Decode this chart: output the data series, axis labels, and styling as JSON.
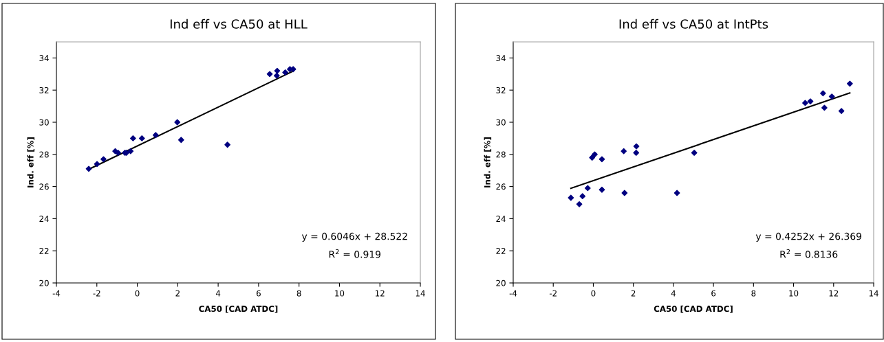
{
  "chart_data": [
    {
      "type": "scatter",
      "title": "Ind eff vs CA50 at HLL",
      "xlabel": "CA50 [CAD ATDC]",
      "ylabel": "Ind. eff [%]",
      "xlim": [
        -4,
        14
      ],
      "xticks": [
        -4,
        -2,
        0,
        2,
        4,
        6,
        8,
        10,
        12,
        14
      ],
      "ylim": [
        20,
        35
      ],
      "yticks": [
        20,
        22,
        24,
        26,
        28,
        30,
        32,
        34
      ],
      "grid": false,
      "annotations": [
        "y = 0.6046x + 28.522",
        "R$^{2}$ = 0.919"
      ],
      "series": [
        {
          "marker": "diamond",
          "color": "#000080",
          "x": [
            -2.4,
            -1.99,
            -1.67,
            -1.09,
            -0.95,
            -0.61,
            -0.54,
            -0.33,
            -0.21,
            0.23,
            0.91,
            1.98,
            2.17,
            4.46,
            6.55,
            6.92,
            6.9,
            7.32,
            7.55,
            7.71
          ],
          "values": [
            27.1,
            27.4,
            27.7,
            28.2,
            28.1,
            28.1,
            28.1,
            28.2,
            29.0,
            29.0,
            29.2,
            30.0,
            28.9,
            28.6,
            33.0,
            33.2,
            32.9,
            33.1,
            33.3,
            33.3
          ]
        },
        {
          "type": "line",
          "marker": "none",
          "line_style": "solid",
          "color": "#000000",
          "x": [
            -2.4,
            7.71
          ],
          "values": [
            27.07,
            33.18
          ]
        }
      ]
    },
    {
      "type": "scatter",
      "title": "Ind eff vs CA50 at IntPts",
      "xlabel": "CA50 [CAD ATDC]",
      "ylabel": "Ind. eff [%]",
      "xlim": [
        -4,
        14
      ],
      "xticks": [
        -4,
        -2,
        0,
        2,
        4,
        6,
        8,
        10,
        12,
        14
      ],
      "ylim": [
        20,
        35
      ],
      "yticks": [
        20,
        22,
        24,
        26,
        28,
        30,
        32,
        34
      ],
      "grid": false,
      "annotations": [
        "y = 0.4252x + 26.369",
        "R$^{2}$ = 0.8136"
      ],
      "series": [
        {
          "marker": "diamond",
          "color": "#000080",
          "x": [
            -1.12,
            -0.7,
            -0.54,
            -0.28,
            -0.06,
            0.07,
            0.43,
            0.43,
            1.52,
            1.56,
            2.14,
            2.15,
            4.18,
            5.04,
            10.58,
            10.84,
            11.47,
            11.54,
            11.91,
            12.39,
            12.81
          ],
          "values": [
            25.3,
            24.9,
            25.4,
            25.9,
            27.8,
            28.0,
            27.7,
            25.8,
            28.2,
            25.6,
            28.1,
            28.5,
            25.6,
            28.1,
            31.2,
            31.3,
            31.8,
            30.9,
            31.6,
            30.7,
            32.4
          ]
        },
        {
          "type": "line",
          "marker": "none",
          "line_style": "solid",
          "color": "#000000",
          "x": [
            -1.12,
            12.81
          ],
          "values": [
            25.89,
            31.82
          ]
        }
      ]
    }
  ]
}
